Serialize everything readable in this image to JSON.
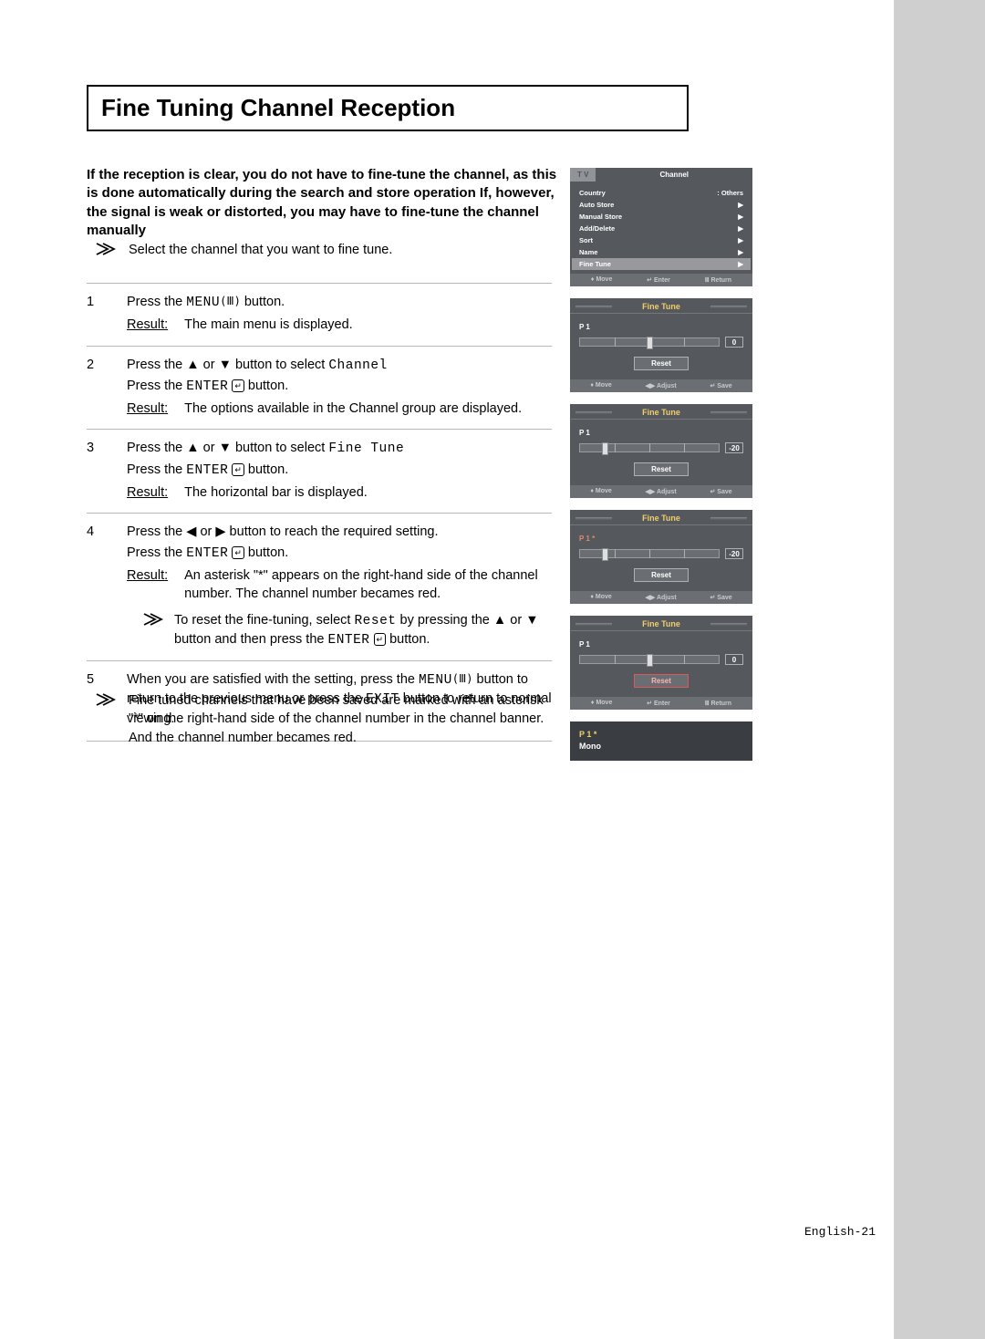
{
  "title": "Fine Tuning Channel Reception",
  "intro": "If the reception is clear, you do not have to fine-tune the channel, as this is done automatically during the search and store operation If, however, the signal is weak or distorted, you may have to fine-tune the channel manually",
  "pre_note": "Select the channel that you want to fine tune.",
  "steps": {
    "s1": {
      "num": "1",
      "p1a": "Press the ",
      "p1b": "MENU",
      "p1c": " button.",
      "result": "The main menu is displayed."
    },
    "s2": {
      "num": "2",
      "p1a": "Press the ▲ or ▼ button to select ",
      "p1b": "Channel",
      "p2a": "Press the ",
      "p2b": "ENTER",
      "p2c": " button.",
      "result": "The options available in the Channel group are displayed."
    },
    "s3": {
      "num": "3",
      "p1a": "Press the ▲ or ▼ button to select ",
      "p1b": "Fine Tune",
      "p2a": "Press the ",
      "p2b": "ENTER",
      "p2c": " button.",
      "result": "The horizontal bar is displayed."
    },
    "s4": {
      "num": "4",
      "p1": "Press the ◀ or ▶ button to reach the required setting.",
      "p2a": "Press the ",
      "p2b": "ENTER",
      "p2c": " button.",
      "result": "An asterisk  \"*\" appears on the right-hand side of the channel number. The channel number becames red.",
      "subnote_a": "To reset the fine-tuning, select ",
      "subnote_b": "Reset",
      "subnote_c": " by pressing the ▲ or ▼ button and then press the ",
      "subnote_d": "ENTER",
      "subnote_e": " button."
    },
    "s5": {
      "num": "5",
      "p1a": "When you are satisfied with the setting, press the ",
      "p1b": "MENU",
      "p1c": " button to return to the previous menu or press the ",
      "p1d": "EXIT",
      "p1e": " button to return to normal viewing."
    }
  },
  "post_note": "Fine tuned channels that have been saved are marked with an asterisk \"*\" on the right-hand side of the channel number in the channel banner. And the channel number becames red.",
  "result_label": "Result",
  "osd": {
    "channel_menu": {
      "tv": "T V",
      "title": "Channel",
      "rows": [
        {
          "l": "Country",
          "r": ":  Others"
        },
        {
          "l": "Auto Store",
          "r": ""
        },
        {
          "l": "Manual Store",
          "r": ""
        },
        {
          "l": "Add/Delete",
          "r": ""
        },
        {
          "l": "Sort",
          "r": ""
        },
        {
          "l": "Name",
          "r": ""
        }
      ],
      "hl": "Fine Tune",
      "footer": {
        "a": "Move",
        "b": "Enter",
        "c": "Return"
      }
    },
    "ft": {
      "title": "Fine Tune",
      "reset": "Reset",
      "footer_adj": {
        "a": "Move",
        "b": "Adjust",
        "c": "Save"
      },
      "footer_ent": {
        "a": "Move",
        "b": "Enter",
        "c": "Return"
      }
    },
    "ft1": {
      "ch": "P  1",
      "val": "0",
      "thumb_pct": 50
    },
    "ft2": {
      "ch": "P  1",
      "val": "-20",
      "thumb_pct": 18
    },
    "ft3": {
      "ch": "P  1  *",
      "val": "-20",
      "thumb_pct": 18
    },
    "ft4": {
      "ch": "P  1",
      "val": "0",
      "thumb_pct": 50
    },
    "banner": {
      "l1": "P  1  *",
      "l2": "Mono"
    }
  },
  "page_num": "English-21"
}
